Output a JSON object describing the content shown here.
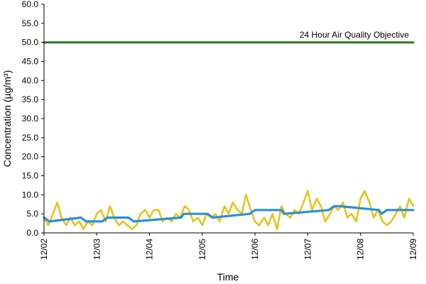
{
  "chart_data": {
    "type": "line",
    "title": "",
    "xlabel": "Time",
    "ylabel": "Concentration (µg/m³)",
    "ylim": [
      0,
      60
    ],
    "xlim": [
      0,
      7
    ],
    "yticks": [
      0,
      5,
      10,
      15,
      20,
      25,
      30,
      35,
      40,
      45,
      50,
      55,
      60
    ],
    "ytick_labels": [
      "0.0",
      "5.0",
      "10.0",
      "15.0",
      "20.0",
      "25.0",
      "30.0",
      "35.0",
      "40.0",
      "45.0",
      "50.0",
      "55.0",
      "60.0"
    ],
    "xtick_labels": [
      "12/02",
      "12/03",
      "12/04",
      "12/05",
      "12/06",
      "12/07",
      "12/08",
      "12/09"
    ],
    "grid": false,
    "legend": "none",
    "annotation": "24 Hour Air Quality Objective",
    "series": [
      {
        "color": "#2a7a1a",
        "x": [
          0,
          7
        ],
        "values": [
          50,
          50
        ]
      },
      {
        "color": "#e8c21e",
        "x": [
          0,
          0.08,
          0.17,
          0.25,
          0.33,
          0.42,
          0.5,
          0.58,
          0.67,
          0.75,
          0.83,
          0.92,
          1,
          1.08,
          1.17,
          1.25,
          1.33,
          1.42,
          1.5,
          1.58,
          1.67,
          1.75,
          1.83,
          1.92,
          2,
          2.08,
          2.17,
          2.25,
          2.33,
          2.42,
          2.5,
          2.58,
          2.67,
          2.75,
          2.83,
          2.92,
          3,
          3.08,
          3.17,
          3.25,
          3.33,
          3.42,
          3.5,
          3.58,
          3.67,
          3.75,
          3.83,
          3.92,
          4,
          4.08,
          4.17,
          4.25,
          4.33,
          4.42,
          4.5,
          4.58,
          4.67,
          4.75,
          4.83,
          4.92,
          5,
          5.08,
          5.17,
          5.25,
          5.33,
          5.42,
          5.5,
          5.58,
          5.67,
          5.75,
          5.83,
          5.92,
          6,
          6.08,
          6.17,
          6.25,
          6.33,
          6.42,
          6.5,
          6.58,
          6.67,
          6.75,
          6.83,
          6.92,
          7
        ],
        "values": [
          4,
          2,
          5,
          8,
          4,
          2,
          4,
          2,
          3,
          1,
          3,
          2,
          5,
          6,
          3,
          7,
          4,
          2,
          3,
          2,
          1,
          2,
          5,
          6,
          4,
          6,
          6,
          3,
          4,
          3,
          5,
          4,
          7,
          6,
          3,
          4,
          2,
          5,
          4,
          5,
          3,
          7,
          5,
          8,
          6,
          5,
          10,
          6,
          3,
          2,
          4,
          2,
          5,
          1,
          7,
          5,
          4,
          6,
          5,
          8,
          11,
          6,
          9,
          7,
          3,
          5,
          7,
          6,
          8,
          4,
          5,
          3,
          9,
          11,
          8,
          4,
          6,
          3,
          2,
          3,
          5,
          7,
          4,
          9,
          7
        ]
      },
      {
        "color": "#2a8fd6",
        "x": [
          0,
          0.1,
          0.7,
          0.8,
          1.1,
          1.2,
          1.6,
          1.7,
          2.6,
          2.65,
          3.1,
          3.2,
          3.9,
          4,
          4.5,
          4.55,
          5.4,
          5.5,
          5.6,
          6.35,
          6.4,
          6.5,
          7
        ],
        "values": [
          4,
          3,
          4,
          3,
          3,
          4,
          4,
          3,
          4,
          5,
          5,
          4,
          5,
          6,
          6,
          5,
          6,
          7,
          7,
          6,
          5,
          6,
          6
        ]
      }
    ]
  }
}
